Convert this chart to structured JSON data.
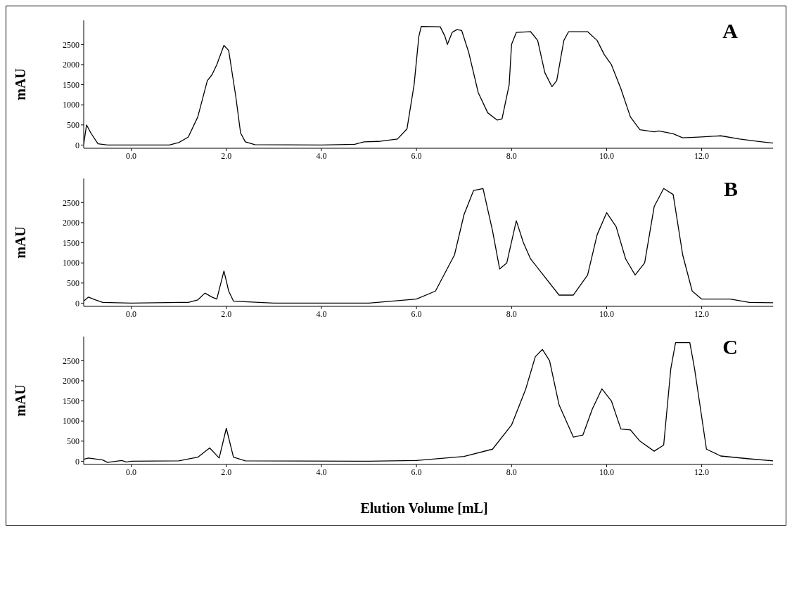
{
  "chart_data": [
    {
      "type": "line",
      "ylabel": "mAU",
      "annotations": [
        "A"
      ],
      "xlim": [
        -1.0,
        13.5
      ],
      "ylim": [
        -80,
        3100
      ],
      "xticks": [
        {
          "value": 0,
          "label": "0.0"
        },
        {
          "value": 2,
          "label": "2.0"
        },
        {
          "value": 4,
          "label": "4.0"
        },
        {
          "value": 6,
          "label": "6.0"
        },
        {
          "value": 8,
          "label": "8.0"
        },
        {
          "value": 10,
          "label": "10.0"
        },
        {
          "value": 12,
          "label": "12.0"
        }
      ],
      "yticks": [
        0,
        500,
        1000,
        1500,
        2000,
        2500
      ],
      "grid": false,
      "marker": "none",
      "line_style": "solid",
      "series": [
        {
          "color": "#000000",
          "x": [
            -1.0,
            -0.94,
            -0.85,
            -0.7,
            -0.5,
            0,
            0.8,
            1.0,
            1.2,
            1.4,
            1.6,
            1.7,
            1.8,
            1.95,
            2.05,
            2.2,
            2.3,
            2.4,
            2.6,
            4.0,
            4.7,
            4.9,
            5.2,
            5.6,
            5.8,
            5.95,
            6.05,
            6.1,
            6.5,
            6.6,
            6.65,
            6.75,
            6.85,
            6.95,
            7.1,
            7.3,
            7.5,
            7.7,
            7.8,
            7.95,
            8.0,
            8.1,
            8.4,
            8.55,
            8.7,
            8.85,
            8.95,
            9.1,
            9.2,
            9.6,
            9.8,
            9.95,
            10.1,
            10.3,
            10.5,
            10.7,
            11.0,
            11.1,
            11.4,
            11.6,
            12.0,
            12.4,
            12.8,
            13.2,
            13.5
          ],
          "values": [
            20,
            500,
            300,
            30,
            0,
            0,
            0,
            60,
            200,
            700,
            1600,
            1750,
            2000,
            2480,
            2350,
            1200,
            300,
            80,
            10,
            0,
            20,
            80,
            90,
            150,
            400,
            1500,
            2700,
            2950,
            2940,
            2700,
            2500,
            2800,
            2870,
            2850,
            2300,
            1300,
            800,
            620,
            650,
            1500,
            2500,
            2800,
            2820,
            2600,
            1800,
            1450,
            1600,
            2600,
            2820,
            2820,
            2600,
            2250,
            2000,
            1400,
            700,
            380,
            330,
            350,
            280,
            180,
            200,
            230,
            150,
            90,
            50
          ]
        }
      ]
    },
    {
      "type": "line",
      "ylabel": "mAU",
      "annotations": [
        "B"
      ],
      "xlim": [
        -1.0,
        13.5
      ],
      "ylim": [
        -80,
        3100
      ],
      "xticks": [
        {
          "value": 0,
          "label": "0.0"
        },
        {
          "value": 2,
          "label": "2.0"
        },
        {
          "value": 4,
          "label": "4.0"
        },
        {
          "value": 6,
          "label": "6.0"
        },
        {
          "value": 8,
          "label": "8.0"
        },
        {
          "value": 10,
          "label": "10.0"
        },
        {
          "value": 12,
          "label": "12.0"
        }
      ],
      "yticks": [
        0,
        500,
        1000,
        1500,
        2000,
        2500
      ],
      "grid": false,
      "marker": "none",
      "line_style": "solid",
      "series": [
        {
          "color": "#000000",
          "x": [
            -1.0,
            -0.9,
            -0.75,
            -0.6,
            0,
            1.2,
            1.4,
            1.55,
            1.7,
            1.8,
            1.95,
            2.05,
            2.15,
            3.0,
            5.0,
            6.0,
            6.4,
            6.8,
            7.0,
            7.2,
            7.4,
            7.6,
            7.75,
            7.9,
            8.1,
            8.25,
            8.4,
            8.6,
            9.0,
            9.3,
            9.6,
            9.8,
            10.0,
            10.2,
            10.4,
            10.6,
            10.8,
            11.0,
            11.2,
            11.4,
            11.6,
            11.8,
            12.0,
            12.6,
            13.0,
            13.5
          ],
          "values": [
            50,
            150,
            80,
            20,
            0,
            20,
            80,
            250,
            150,
            100,
            800,
            300,
            50,
            0,
            0,
            100,
            300,
            1200,
            2200,
            2800,
            2850,
            1800,
            850,
            1000,
            2050,
            1500,
            1100,
            800,
            200,
            200,
            700,
            1700,
            2250,
            1900,
            1100,
            700,
            1000,
            2400,
            2850,
            2700,
            1200,
            300,
            100,
            100,
            20,
            10
          ]
        }
      ]
    },
    {
      "type": "line",
      "ylabel": "mAU",
      "xlabel": "Elution Volume [mL]",
      "annotations": [
        "C"
      ],
      "xlim": [
        -1.0,
        13.5
      ],
      "ylim": [
        -80,
        3100
      ],
      "xticks": [
        {
          "value": 0,
          "label": "0.0"
        },
        {
          "value": 2,
          "label": "2.0"
        },
        {
          "value": 4,
          "label": "4.0"
        },
        {
          "value": 6,
          "label": "6.0"
        },
        {
          "value": 8,
          "label": "8.0"
        },
        {
          "value": 10,
          "label": "10.0"
        },
        {
          "value": 12,
          "label": "12.0"
        }
      ],
      "yticks": [
        0,
        500,
        1000,
        1500,
        2000,
        2500
      ],
      "grid": false,
      "marker": "none",
      "line_style": "solid",
      "series": [
        {
          "color": "#000000",
          "x": [
            -1.0,
            -0.9,
            -0.6,
            -0.5,
            -0.2,
            -0.1,
            0,
            1.0,
            1.4,
            1.65,
            1.85,
            2.0,
            2.15,
            2.4,
            5.0,
            6.0,
            7.0,
            7.6,
            8.0,
            8.3,
            8.5,
            8.65,
            8.8,
            9.0,
            9.3,
            9.5,
            9.7,
            9.9,
            10.1,
            10.3,
            10.5,
            10.7,
            11.0,
            11.2,
            11.35,
            11.45,
            11.75,
            11.85,
            12.1,
            12.4,
            13.0,
            13.5
          ],
          "values": [
            50,
            80,
            30,
            -30,
            20,
            -20,
            0,
            10,
            100,
            330,
            80,
            820,
            100,
            10,
            0,
            20,
            120,
            300,
            900,
            1800,
            2600,
            2780,
            2500,
            1400,
            600,
            650,
            1300,
            1800,
            1500,
            800,
            780,
            500,
            250,
            400,
            2300,
            2950,
            2950,
            2300,
            300,
            130,
            60,
            10
          ]
        }
      ]
    }
  ]
}
